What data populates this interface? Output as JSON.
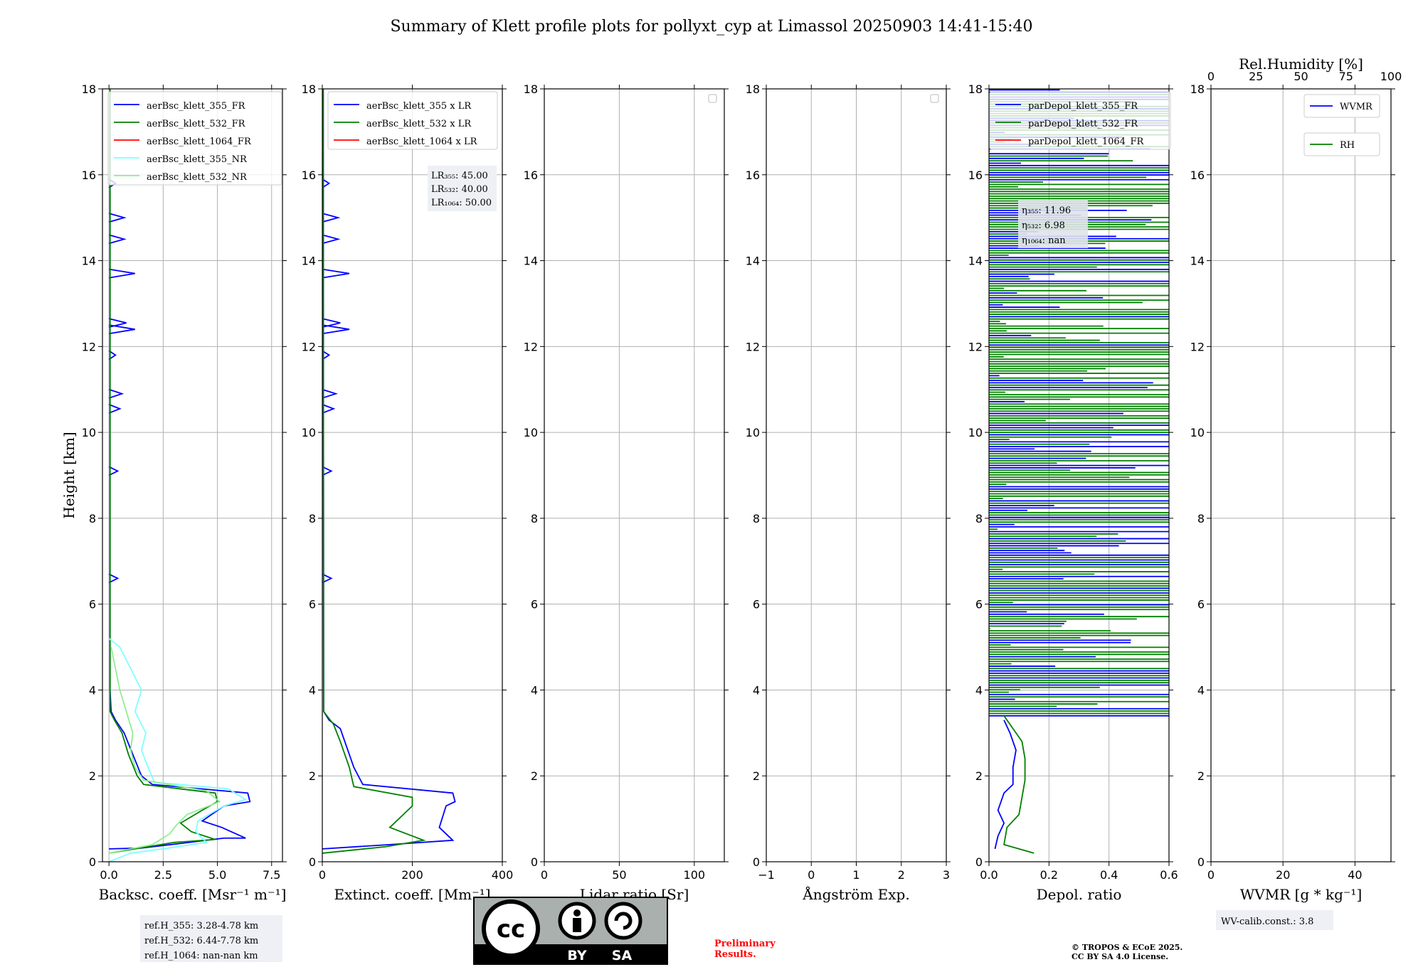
{
  "title": "Summary of Klett profile plots for pollyxt_cyp at Limassol 20250903 14:41-15:40",
  "colors": {
    "c355": "#0000ff",
    "c532": "#008000",
    "c1064": "#ff0000",
    "nr355": "#7fffff",
    "nr532": "#90ee90",
    "grid": "#b0b0b0"
  },
  "chart_data": [
    {
      "type": "line",
      "id": "bsc",
      "ylabel": "Height [km]",
      "xlabel": "Backsc. coeff. [Msr⁻¹ m⁻¹]",
      "xlim": [
        -0.3,
        8.0
      ],
      "ylim": [
        0,
        18
      ],
      "xticks": [
        0,
        2.5,
        5,
        7.5
      ],
      "xticklabels": [
        "0.0",
        "2.5",
        "5.0",
        "7.5"
      ],
      "yticks": [
        0,
        2,
        4,
        6,
        8,
        10,
        12,
        14,
        16,
        18
      ],
      "legend": [
        "aerBsc_klett_355_FR",
        "aerBsc_klett_532_FR",
        "aerBsc_klett_1064_FR",
        "aerBsc_klett_355_NR",
        "aerBsc_klett_532_NR"
      ],
      "series": [
        {
          "name": "aerBsc_klett_355_FR",
          "color": "blue",
          "points": [
            [
              0.0,
              0.3
            ],
            [
              1.5,
              0.32
            ],
            [
              3.2,
              0.42
            ],
            [
              5.3,
              0.55
            ],
            [
              6.3,
              0.55
            ],
            [
              5.2,
              0.8
            ],
            [
              4.3,
              0.95
            ],
            [
              5.3,
              1.3
            ],
            [
              6.5,
              1.4
            ],
            [
              6.4,
              1.6
            ],
            [
              2.0,
              1.8
            ],
            [
              1.5,
              2.0
            ],
            [
              1.1,
              2.5
            ],
            [
              0.7,
              3.0
            ],
            [
              0.3,
              3.3
            ],
            [
              0.1,
              3.5
            ],
            [
              0.05,
              4.0
            ],
            [
              0.05,
              18
            ]
          ]
        },
        {
          "name": "aerBsc_klett_532_FR",
          "color": "green",
          "points": [
            [
              0.0,
              0.2
            ],
            [
              3.0,
              0.45
            ],
            [
              4.9,
              0.52
            ],
            [
              3.8,
              0.7
            ],
            [
              3.3,
              0.9
            ],
            [
              4.3,
              1.2
            ],
            [
              5.0,
              1.4
            ],
            [
              4.9,
              1.6
            ],
            [
              1.6,
              1.8
            ],
            [
              1.3,
              2.0
            ],
            [
              0.9,
              2.5
            ],
            [
              0.6,
              3.0
            ],
            [
              0.25,
              3.3
            ],
            [
              0.05,
              3.5
            ],
            [
              0.05,
              18
            ]
          ]
        },
        {
          "name": "aerBsc_klett_355_NR",
          "color": "nr355",
          "points": [
            [
              0.0,
              0.0
            ],
            [
              1.0,
              0.2
            ],
            [
              2.5,
              0.3
            ],
            [
              4.5,
              0.45
            ],
            [
              4.0,
              0.7
            ],
            [
              4.1,
              0.95
            ],
            [
              5.3,
              1.3
            ],
            [
              6.3,
              1.45
            ],
            [
              5.5,
              1.7
            ],
            [
              2.1,
              1.85
            ],
            [
              1.8,
              2.2
            ],
            [
              1.5,
              2.6
            ],
            [
              1.7,
              3.0
            ],
            [
              1.2,
              3.5
            ],
            [
              1.5,
              4.0
            ],
            [
              1.0,
              4.5
            ],
            [
              0.5,
              5.0
            ],
            [
              0.0,
              5.2
            ]
          ]
        },
        {
          "name": "aerBsc_klett_532_NR",
          "color": "nr532",
          "points": [
            [
              0.0,
              0.2
            ],
            [
              2.0,
              0.4
            ],
            [
              2.8,
              0.65
            ],
            [
              3.1,
              0.85
            ],
            [
              3.6,
              1.1
            ],
            [
              5.1,
              1.4
            ],
            [
              4.5,
              1.65
            ],
            [
              1.6,
              1.9
            ],
            [
              1.2,
              2.2
            ],
            [
              1.0,
              2.6
            ],
            [
              1.1,
              3.0
            ],
            [
              0.8,
              3.5
            ],
            [
              0.5,
              4.0
            ],
            [
              0.3,
              4.5
            ],
            [
              0.1,
              5.0
            ]
          ]
        }
      ],
      "annotation": [
        "ref.H_355: 3.28-4.78 km",
        "ref.H_532: 6.44-7.78 km",
        "ref.H_1064: nan-nan km"
      ]
    },
    {
      "type": "line",
      "id": "ext",
      "xlabel": "Extinct. coeff. [Mm⁻¹]",
      "xlim": [
        0,
        400
      ],
      "ylim": [
        0,
        18
      ],
      "xticks": [
        0,
        200,
        400
      ],
      "xticklabels": [
        "0",
        "200",
        "400"
      ],
      "yticks": [
        0,
        2,
        4,
        6,
        8,
        10,
        12,
        14,
        16,
        18
      ],
      "legend": [
        "aerBsc_klett_355 x LR",
        "aerBsc_klett_532 x LR",
        "aerBsc_klett_1064 x LR"
      ],
      "series": [
        {
          "name": "aerBsc_klett_355 x LR",
          "color": "blue",
          "points": [
            [
              0,
              0.3
            ],
            [
              150,
              0.4
            ],
            [
              290,
              0.5
            ],
            [
              260,
              0.8
            ],
            [
              275,
              1.3
            ],
            [
              295,
              1.4
            ],
            [
              290,
              1.6
            ],
            [
              90,
              1.8
            ],
            [
              70,
              2.2
            ],
            [
              50,
              2.8
            ],
            [
              40,
              3.1
            ],
            [
              15,
              3.3
            ],
            [
              3,
              3.5
            ],
            [
              2,
              18
            ]
          ]
        },
        {
          "name": "aerBsc_klett_532 x LR",
          "color": "green",
          "points": [
            [
              0,
              0.2
            ],
            [
              140,
              0.35
            ],
            [
              225,
              0.5
            ],
            [
              150,
              0.8
            ],
            [
              200,
              1.3
            ],
            [
              200,
              1.5
            ],
            [
              70,
              1.75
            ],
            [
              60,
              2.2
            ],
            [
              40,
              2.8
            ],
            [
              25,
              3.2
            ],
            [
              3,
              3.5
            ],
            [
              2,
              18
            ]
          ]
        }
      ],
      "annotation": [
        "LR₃₅₅: 45.00",
        "LR₅₃₂: 40.00",
        "LR₁₀₆₄: 50.00"
      ]
    },
    {
      "type": "line",
      "id": "lr",
      "xlabel": "Lidar ratio [Sr]",
      "xlim": [
        0,
        120
      ],
      "ylim": [
        0,
        18
      ],
      "xticks": [
        0,
        50,
        100
      ],
      "xticklabels": [
        "0",
        "50",
        "100"
      ],
      "yticks": [
        0,
        2,
        4,
        6,
        8,
        10,
        12,
        14,
        16,
        18
      ],
      "series": []
    },
    {
      "type": "line",
      "id": "ang",
      "xlabel": "Ångström Exp.",
      "xlim": [
        -1,
        3
      ],
      "ylim": [
        0,
        18
      ],
      "xticks": [
        -1,
        0,
        1,
        2,
        3
      ],
      "xticklabels": [
        "−1",
        "0",
        "1",
        "2",
        "3"
      ],
      "yticks": [
        0,
        2,
        4,
        6,
        8,
        10,
        12,
        14,
        16,
        18
      ],
      "series": []
    },
    {
      "type": "line",
      "id": "dep",
      "xlabel": "Depol. ratio",
      "xlim": [
        0,
        0.6
      ],
      "ylim": [
        0,
        18
      ],
      "xticks": [
        0,
        0.2,
        0.4,
        0.6
      ],
      "xticklabels": [
        "0.0",
        "0.2",
        "0.4",
        "0.6"
      ],
      "yticks": [
        0,
        2,
        4,
        6,
        8,
        10,
        12,
        14,
        16,
        18
      ],
      "legend": [
        "parDepol_klett_355_FR",
        "parDepol_klett_532_FR",
        "parDepol_klett_1064_FR"
      ],
      "series": [
        {
          "name": "parDepol_klett_355_FR",
          "color": "blue",
          "points": [
            [
              0.02,
              0.3
            ],
            [
              0.03,
              0.6
            ],
            [
              0.05,
              0.9
            ],
            [
              0.03,
              1.2
            ],
            [
              0.05,
              1.6
            ],
            [
              0.08,
              1.8
            ],
            [
              0.08,
              2.2
            ],
            [
              0.09,
              2.6
            ],
            [
              0.07,
              3.0
            ],
            [
              0.05,
              3.3
            ]
          ]
        },
        {
          "name": "parDepol_klett_532_FR",
          "color": "green",
          "points": [
            [
              0.15,
              0.2
            ],
            [
              0.05,
              0.4
            ],
            [
              0.06,
              0.8
            ],
            [
              0.1,
              1.1
            ],
            [
              0.11,
              1.5
            ],
            [
              0.12,
              1.9
            ],
            [
              0.12,
              2.4
            ],
            [
              0.11,
              2.8
            ],
            [
              0.07,
              3.2
            ],
            [
              0.05,
              3.4
            ]
          ]
        }
      ],
      "annotation": [
        "η₃₅₅: 11.96",
        "η₅₃₂: 6.98",
        "η₁₀₆₄: nan"
      ]
    },
    {
      "type": "line",
      "id": "wv",
      "xlabel": "WVMR [g * kg⁻¹]",
      "xlim": [
        0,
        50
      ],
      "ylim": [
        0,
        18
      ],
      "xticks": [
        0,
        20,
        40
      ],
      "xticklabels": [
        "0",
        "20",
        "40"
      ],
      "top_xlabel": "Rel.Humidity [%]",
      "top_xticks": [
        0,
        25,
        50,
        75,
        100
      ],
      "top_xticklabels": [
        "0",
        "25",
        "50",
        "75",
        "100"
      ],
      "yticks": [
        0,
        2,
        4,
        6,
        8,
        10,
        12,
        14,
        16,
        18
      ],
      "legend": [
        "WVMR",
        "RH"
      ],
      "series": [],
      "annotation": [
        "WV-calib.const.: 3.8"
      ]
    }
  ],
  "license_badge": {
    "by": "BY",
    "sa": "SA",
    "cc": "cc"
  },
  "footer": {
    "preliminary": [
      "Preliminary",
      "Results."
    ],
    "copyright": [
      "© TROPOS & ECoE 2025.",
      "CC BY SA 4.0 License."
    ]
  }
}
